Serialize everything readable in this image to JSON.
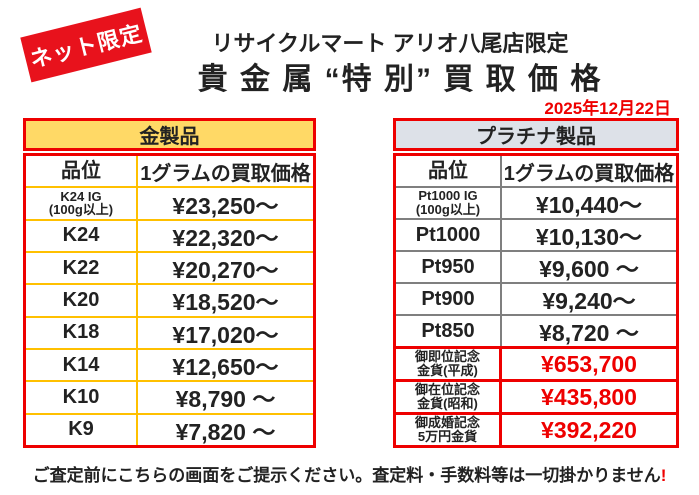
{
  "badge": {
    "label": "ネット限定"
  },
  "header": {
    "store_line": "リサイクルマート アリオ八尾店限定",
    "title": "貴 金 属 “特 別” 買 取 価 格",
    "date": "2025年12月22日"
  },
  "tables": {
    "gold": {
      "title": "金製品",
      "columns": {
        "grade": "品位",
        "price": "1グラムの買取価格"
      },
      "rows": [
        {
          "grade": "K24 IG",
          "grade_sub": "(100g以上)",
          "price": "¥23,250～"
        },
        {
          "grade": "K24",
          "grade_sub": "",
          "price": "¥22,320～"
        },
        {
          "grade": "K22",
          "grade_sub": "",
          "price": "¥20,270～"
        },
        {
          "grade": "K20",
          "grade_sub": "",
          "price": "¥18,520～"
        },
        {
          "grade": "K18",
          "grade_sub": "",
          "price": "¥17,020～"
        },
        {
          "grade": "K14",
          "grade_sub": "",
          "price": "¥12,650～"
        },
        {
          "grade": "K10",
          "grade_sub": "",
          "price": "¥8,790 ～"
        },
        {
          "grade": "K9",
          "grade_sub": "",
          "price": "¥7,820 ～"
        }
      ]
    },
    "platinum": {
      "title": "プラチナ製品",
      "columns": {
        "grade": "品位",
        "price": "1グラムの買取価格"
      },
      "rows": [
        {
          "grade": "Pt1000 IG",
          "grade_sub": "(100g以上)",
          "price": "¥10,440～"
        },
        {
          "grade": "Pt1000",
          "grade_sub": "",
          "price": "¥10,130～"
        },
        {
          "grade": "Pt950",
          "grade_sub": "",
          "price": "¥9,600 ～"
        },
        {
          "grade": "Pt900",
          "grade_sub": "",
          "price": "¥9,240～"
        },
        {
          "grade": "Pt850",
          "grade_sub": "",
          "price": "¥8,720 ～"
        }
      ],
      "special_rows": [
        {
          "label_line1": "御即位記念",
          "label_line2": "金貨(平成)",
          "price": "¥653,700"
        },
        {
          "label_line1": "御在位記念",
          "label_line2": "金貨(昭和)",
          "price": "¥435,800"
        },
        {
          "label_line1": "御成婚記念",
          "label_line2": "5万円金貨",
          "price": "¥392,220"
        }
      ]
    }
  },
  "footer": {
    "note": "ご査定前にこちらの画面をご提示ください。査定料・手数料等は一切掛かりません",
    "note_emphasis": "!"
  },
  "colors": {
    "red": "#ee0000",
    "badge-red": "#e8121c",
    "gold-bg": "#ffd966",
    "gold-border": "#ffc000",
    "platinum-bg": "#dde1e8",
    "gray-border": "#7f7f7f",
    "text": "#222222"
  }
}
